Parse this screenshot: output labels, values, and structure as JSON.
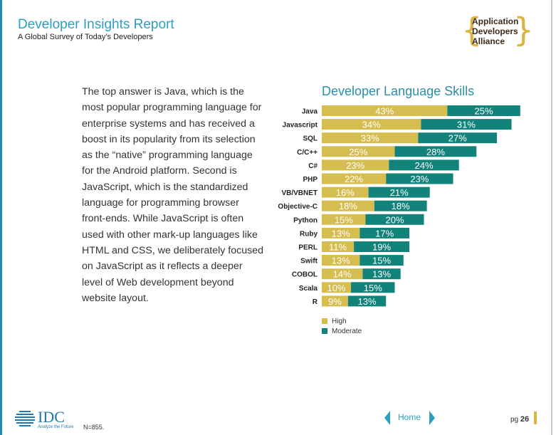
{
  "header": {
    "title": "Developer Insights Report",
    "subtitle": "A Global Survey of Today’s Developers",
    "logo_lines": [
      "Application",
      "Developers",
      "Alliance"
    ]
  },
  "body_text": "The top answer is Java, which is the most popular programming language for enterprise systems and has received a boost in its popularity from its selection as the “native” programming language for the Android platform. Second is JavaScript, which is the standardized language for programming browser front-ends. While JavaScript is often used with other mark-up languages like HTML and CSS, we deliberately focused on JavaScript as it reflects a deeper level of Web development beyond website layout.",
  "chart_data": {
    "type": "bar",
    "orientation": "horizontal",
    "stacked": true,
    "title": "Developer Language Skills",
    "categories": [
      "Java",
      "Javascript",
      "SQL",
      "C/C++",
      "C#",
      "PHP",
      "VB/VBNET",
      "Objective-C",
      "Python",
      "Ruby",
      "PERL",
      "Swift",
      "COBOL",
      "Scala",
      "R"
    ],
    "series": [
      {
        "name": "High",
        "color": "#d6bd50",
        "values": [
          43,
          34,
          33,
          25,
          23,
          22,
          16,
          18,
          15,
          13,
          11,
          13,
          14,
          10,
          9
        ]
      },
      {
        "name": "Moderate",
        "color": "#12837a",
        "values": [
          25,
          31,
          27,
          28,
          24,
          23,
          21,
          18,
          20,
          17,
          19,
          15,
          13,
          15,
          13
        ]
      }
    ],
    "value_suffix": "%",
    "legend_position": "bottom-left",
    "grid": false
  },
  "footer": {
    "logo_text": "IDC",
    "logo_tagline": "Analyze the Future",
    "note": "N=855.",
    "nav_label": "Home",
    "page_prefix": "pg",
    "page_number": "26"
  },
  "colors": {
    "accent": "#2c9fc0",
    "gold": "#d8b545",
    "high": "#d6bd50",
    "moderate": "#12837a"
  }
}
